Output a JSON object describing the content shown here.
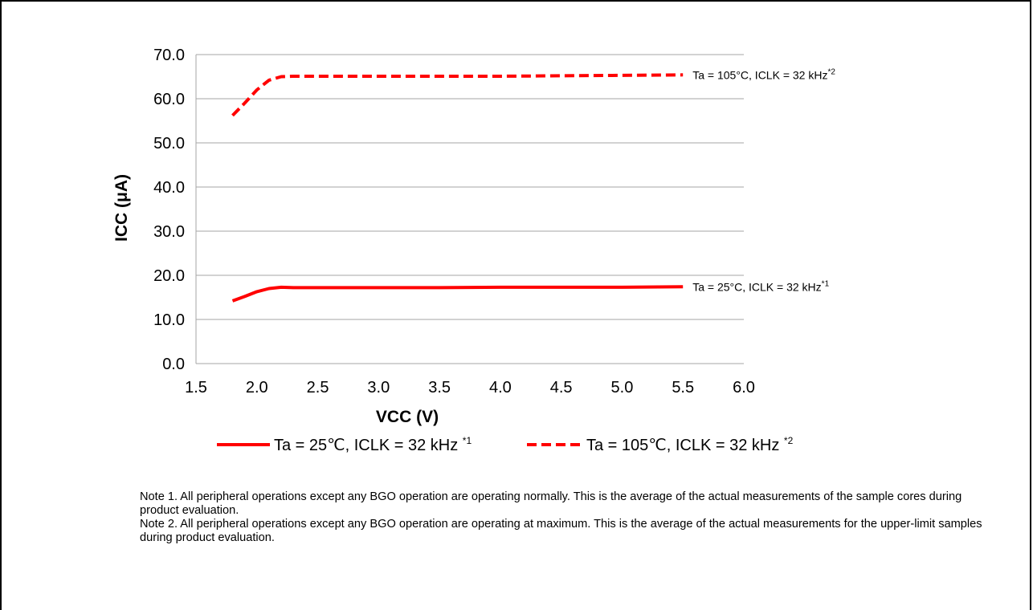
{
  "chart_data": {
    "type": "line",
    "xlabel": "VCC (V)",
    "ylabel": "ICC (μA)",
    "xlim": [
      1.5,
      6.0
    ],
    "ylim": [
      0,
      70
    ],
    "x_ticks": [
      "1.5",
      "2.0",
      "2.5",
      "3.0",
      "3.5",
      "4.0",
      "4.5",
      "5.0",
      "5.5",
      "6.0"
    ],
    "y_ticks": [
      "0.0",
      "10.0",
      "20.0",
      "30.0",
      "40.0",
      "50.0",
      "60.0",
      "70.0"
    ],
    "grid": "horizontal",
    "legend_position": "bottom",
    "series": [
      {
        "name": "Ta = 25℃, ICLK = 32 kHz",
        "superscript": "*1",
        "color": "#ff0000",
        "style": "solid",
        "x": [
          1.8,
          1.9,
          2.0,
          2.1,
          2.2,
          2.3,
          2.5,
          3.0,
          3.5,
          4.0,
          4.5,
          5.0,
          5.5
        ],
        "y": [
          14.2,
          15.2,
          16.3,
          17.0,
          17.3,
          17.2,
          17.2,
          17.2,
          17.2,
          17.3,
          17.3,
          17.3,
          17.4
        ],
        "annotation": "Ta = 25°C, ICLK = 32 kHz",
        "annotation_superscript": "*1"
      },
      {
        "name": "Ta = 105℃, ICLK = 32 kHz",
        "superscript": "*2",
        "color": "#ff0000",
        "style": "dashed",
        "x": [
          1.8,
          1.9,
          2.0,
          2.1,
          2.2,
          2.3,
          2.5,
          3.0,
          3.5,
          4.0,
          4.5,
          5.0,
          5.5
        ],
        "y": [
          56.2,
          59.0,
          62.0,
          64.2,
          65.0,
          65.1,
          65.1,
          65.1,
          65.1,
          65.1,
          65.2,
          65.3,
          65.4
        ],
        "annotation": "Ta = 105°C, ICLK = 32 kHz",
        "annotation_superscript": "*2"
      }
    ]
  },
  "notes": {
    "note1": "Note 1. All peripheral operations except any BGO operation are operating normally. This is the average of the actual measurements of the sample cores during product evaluation.",
    "note2": "Note 2. All peripheral operations except any BGO operation are operating at maximum. This is the average of the actual measurements for the upper-limit samples during product evaluation."
  }
}
